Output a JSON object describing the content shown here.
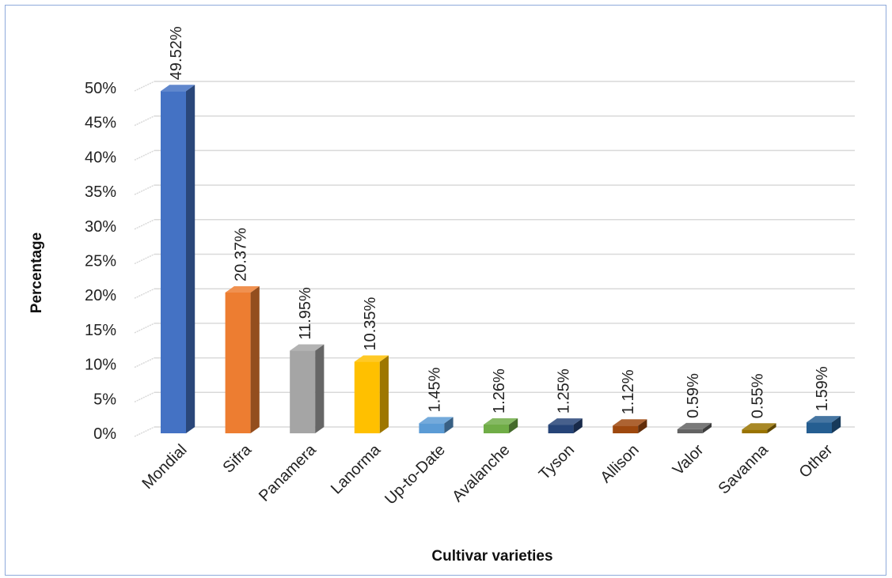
{
  "chart_data": {
    "type": "bar",
    "title": "",
    "xlabel": "Cultivar varieties",
    "ylabel": "Percentage",
    "ylim": [
      0,
      50
    ],
    "yticks": [
      0,
      5,
      10,
      15,
      20,
      25,
      30,
      35,
      40,
      45,
      50
    ],
    "ytick_labels": [
      "0%",
      "5%",
      "10%",
      "15%",
      "20%",
      "25%",
      "30%",
      "35%",
      "40%",
      "45%",
      "50%"
    ],
    "grid": true,
    "legend": "none",
    "categories": [
      "Mondial",
      "Sifra",
      "Panamera",
      "Lanorma",
      "Up-to-Date",
      "Avalanche",
      "Tyson",
      "Allison",
      "Valor",
      "Savanna",
      "Other"
    ],
    "values": [
      49.52,
      20.37,
      11.95,
      10.35,
      1.45,
      1.26,
      1.25,
      1.12,
      0.59,
      0.55,
      1.59
    ],
    "data_labels": [
      "49.52%",
      "20.37%",
      "11.95%",
      "10.35%",
      "1.45%",
      "1.26%",
      "1.25%",
      "1.12%",
      "0.59%",
      "0.55%",
      "1.59%"
    ],
    "colors": [
      "#4472c4",
      "#ed7d31",
      "#a5a5a5",
      "#ffc000",
      "#5b9bd5",
      "#70ad47",
      "#264478",
      "#9e480e",
      "#636363",
      "#997300",
      "#255e91"
    ]
  }
}
